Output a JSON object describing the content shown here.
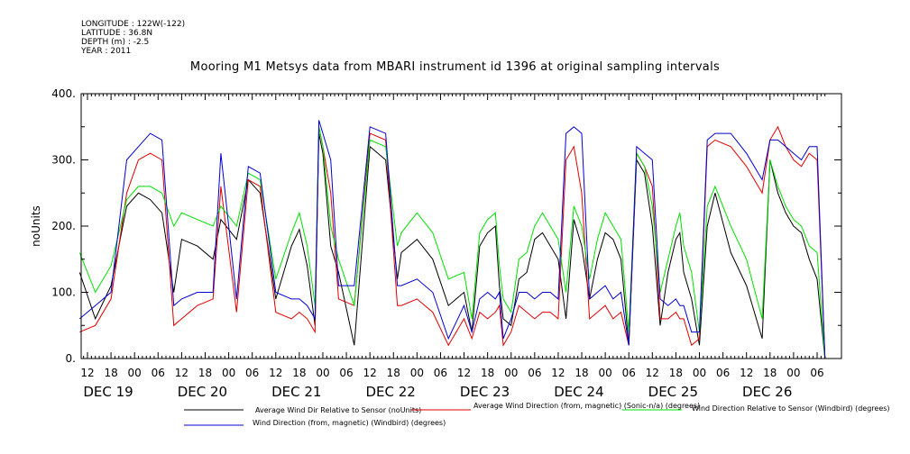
{
  "header": {
    "longitude": "LONGITUDE : 122W(-122)",
    "latitude": "LATITUDE : 36.8N",
    "depth": "DEPTH (m) : -2.5",
    "year": "YEAR : 2011"
  },
  "chart_data": {
    "type": "line",
    "title": "Mooring M1 Metsys data from MBARI instrument id 1396 at original sampling intervals",
    "ylabel": "noUnits",
    "ylim": [
      0,
      400
    ],
    "yticks": [
      "0.",
      "100.",
      "200.",
      "300.",
      "400."
    ],
    "xlim_hours": [
      10,
      200
    ],
    "hour_labels": [
      "12",
      "18",
      "00",
      "06",
      "12",
      "18",
      "00",
      "06",
      "12",
      "18",
      "00",
      "06",
      "12",
      "18",
      "00",
      "06",
      "12",
      "18",
      "00",
      "06",
      "12",
      "18",
      "00",
      "06",
      "12",
      "18",
      "00",
      "06",
      "12",
      "18",
      "00",
      "06"
    ],
    "day_labels": [
      "DEC 19",
      "DEC 20",
      "DEC 21",
      "DEC 22",
      "DEC 23",
      "DEC 24",
      "DEC 25",
      "DEC 26"
    ],
    "series": [
      {
        "name": "Average Wind Dir Relative to Sensor (noUnits)",
        "color": "#000000",
        "x": [
          10,
          14,
          18,
          22,
          25,
          28,
          31,
          34,
          36,
          40,
          44,
          46,
          50,
          53,
          56,
          60,
          64,
          66,
          68,
          70,
          71,
          72,
          74,
          76,
          80,
          84,
          88,
          91,
          92,
          96,
          100,
          104,
          108,
          110,
          112,
          114,
          116,
          117,
          118,
          120,
          122,
          124,
          126,
          128,
          130,
          132,
          134,
          136,
          138,
          140,
          142,
          144,
          146,
          148,
          150,
          152,
          154,
          156,
          158,
          160,
          162,
          163,
          164,
          166,
          168,
          170,
          172,
          176,
          180,
          184,
          186,
          188,
          190,
          192,
          194,
          196,
          198,
          200
        ],
        "values": [
          130,
          60,
          110,
          230,
          250,
          240,
          220,
          100,
          180,
          170,
          150,
          210,
          180,
          270,
          250,
          90,
          170,
          195,
          140,
          50,
          340,
          310,
          170,
          130,
          20,
          320,
          300,
          120,
          160,
          180,
          150,
          80,
          100,
          40,
          170,
          190,
          200,
          110,
          60,
          50,
          120,
          130,
          180,
          190,
          170,
          150,
          60,
          210,
          170,
          90,
          150,
          190,
          180,
          150,
          20,
          300,
          280,
          200,
          50,
          130,
          180,
          190,
          130,
          90,
          20,
          200,
          250,
          160,
          110,
          30,
          300,
          250,
          220,
          200,
          190,
          150,
          120,
          0
        ]
      },
      {
        "name": "Average Wind Direction (from, magnetic) (Sonic-n/a) (degrees)",
        "color": "#e00000",
        "x": [
          10,
          14,
          18,
          22,
          25,
          28,
          31,
          34,
          36,
          40,
          44,
          46,
          50,
          53,
          56,
          60,
          64,
          66,
          68,
          70,
          71,
          72,
          74,
          76,
          80,
          84,
          88,
          91,
          92,
          96,
          100,
          104,
          108,
          110,
          112,
          114,
          116,
          117,
          118,
          120,
          122,
          124,
          126,
          128,
          130,
          132,
          134,
          136,
          138,
          140,
          142,
          144,
          146,
          148,
          150,
          152,
          154,
          156,
          158,
          160,
          162,
          163,
          164,
          166,
          168,
          170,
          172,
          176,
          180,
          184,
          186,
          188,
          190,
          192,
          194,
          196,
          198,
          200
        ],
        "values": [
          40,
          50,
          90,
          250,
          300,
          310,
          300,
          50,
          60,
          80,
          90,
          260,
          70,
          270,
          260,
          70,
          60,
          70,
          60,
          40,
          350,
          320,
          250,
          90,
          80,
          340,
          330,
          80,
          80,
          90,
          70,
          20,
          60,
          30,
          70,
          60,
          70,
          80,
          20,
          40,
          80,
          70,
          60,
          70,
          70,
          60,
          300,
          320,
          250,
          60,
          70,
          80,
          60,
          70,
          20,
          310,
          290,
          260,
          60,
          60,
          70,
          60,
          60,
          20,
          30,
          320,
          330,
          320,
          290,
          250,
          330,
          350,
          320,
          300,
          290,
          310,
          300,
          0
        ]
      },
      {
        "name": "Wind Direction Relative to Sensor (Windbird) (degrees)",
        "color": "#00e000",
        "x": [
          10,
          14,
          18,
          22,
          25,
          28,
          31,
          34,
          36,
          40,
          44,
          46,
          50,
          53,
          56,
          60,
          64,
          66,
          68,
          70,
          71,
          72,
          74,
          76,
          80,
          84,
          88,
          91,
          92,
          96,
          100,
          104,
          108,
          110,
          112,
          114,
          116,
          117,
          118,
          120,
          122,
          124,
          126,
          128,
          130,
          132,
          134,
          136,
          138,
          140,
          142,
          144,
          146,
          148,
          150,
          152,
          154,
          156,
          158,
          160,
          162,
          163,
          164,
          166,
          168,
          170,
          172,
          176,
          180,
          184,
          186,
          188,
          190,
          192,
          194,
          196,
          198,
          200
        ],
        "values": [
          160,
          100,
          140,
          240,
          260,
          260,
          250,
          200,
          220,
          210,
          200,
          230,
          200,
          280,
          270,
          120,
          190,
          220,
          170,
          80,
          350,
          320,
          200,
          150,
          80,
          330,
          320,
          170,
          190,
          220,
          190,
          120,
          130,
          60,
          190,
          210,
          220,
          140,
          90,
          70,
          150,
          160,
          200,
          220,
          200,
          180,
          100,
          230,
          200,
          120,
          180,
          220,
          200,
          180,
          40,
          310,
          290,
          230,
          100,
          150,
          200,
          220,
          170,
          130,
          40,
          230,
          260,
          200,
          150,
          60,
          300,
          260,
          230,
          210,
          200,
          170,
          160,
          0
        ]
      },
      {
        "name": "Wind Direction (from, magnetic) (Windbird) (degrees)",
        "color": "#0000d0",
        "x": [
          10,
          14,
          18,
          22,
          25,
          28,
          31,
          34,
          36,
          40,
          44,
          46,
          50,
          53,
          56,
          60,
          64,
          66,
          68,
          70,
          71,
          72,
          74,
          76,
          80,
          84,
          88,
          91,
          92,
          96,
          100,
          104,
          108,
          110,
          112,
          114,
          116,
          117,
          118,
          120,
          122,
          124,
          126,
          128,
          130,
          132,
          134,
          136,
          138,
          140,
          142,
          144,
          146,
          148,
          150,
          152,
          154,
          156,
          158,
          160,
          162,
          163,
          164,
          166,
          168,
          170,
          172,
          176,
          180,
          184,
          186,
          188,
          190,
          192,
          194,
          196,
          198,
          200
        ],
        "values": [
          60,
          80,
          100,
          300,
          320,
          340,
          330,
          80,
          90,
          100,
          100,
          310,
          90,
          290,
          280,
          100,
          90,
          90,
          80,
          60,
          360,
          340,
          300,
          110,
          110,
          350,
          340,
          110,
          110,
          120,
          100,
          30,
          80,
          40,
          90,
          100,
          90,
          100,
          30,
          60,
          100,
          100,
          90,
          100,
          100,
          90,
          340,
          350,
          340,
          90,
          100,
          110,
          90,
          100,
          20,
          320,
          310,
          300,
          90,
          80,
          90,
          80,
          80,
          40,
          40,
          330,
          340,
          340,
          310,
          270,
          330,
          330,
          320,
          310,
          300,
          320,
          320,
          0
        ]
      }
    ]
  }
}
